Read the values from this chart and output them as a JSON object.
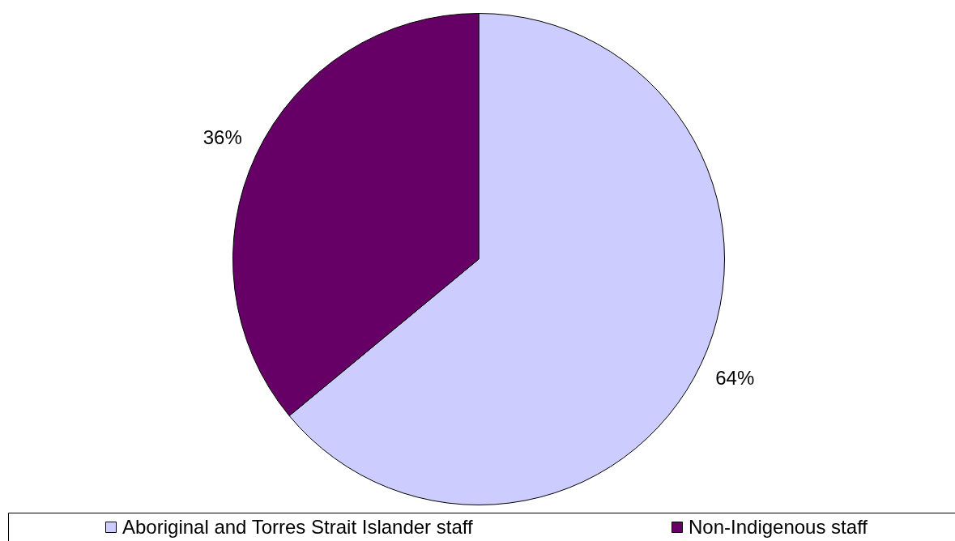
{
  "chart_data": {
    "type": "pie",
    "categories": [
      "Aboriginal and Torres Strait Islander staff",
      "Non-Indigenous staff"
    ],
    "values": [
      64,
      36
    ],
    "colors": [
      "#ccccff",
      "#660066"
    ],
    "value_labels": [
      "64%",
      "36%"
    ],
    "legend": "bottom"
  }
}
